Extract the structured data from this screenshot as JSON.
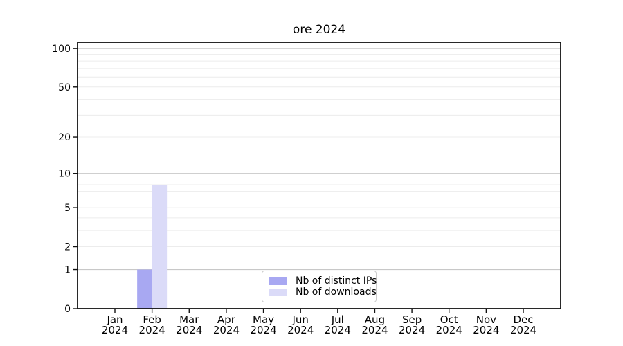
{
  "figure": {
    "background": "#ffffff"
  },
  "chart_data": {
    "type": "bar",
    "title": "ore 2024",
    "categories": [
      "Jan 2024",
      "Feb 2024",
      "Mar 2024",
      "Apr 2024",
      "May 2024",
      "Jun 2024",
      "Jul 2024",
      "Aug 2024",
      "Sep 2024",
      "Oct 2024",
      "Nov 2024",
      "Dec 2024"
    ],
    "series": [
      {
        "name": "Nb of distinct IPs",
        "color": "#a8a8f2",
        "values": [
          0,
          1,
          0,
          0,
          0,
          0,
          0,
          0,
          0,
          0,
          0,
          0
        ]
      },
      {
        "name": "Nb of downloads",
        "color": "#dbdbf8",
        "values": [
          0,
          8,
          0,
          0,
          0,
          0,
          0,
          0,
          0,
          0,
          0,
          0
        ]
      }
    ],
    "xlabel": "",
    "ylabel": "",
    "yscale": "log1p",
    "ylim": [
      0,
      112
    ],
    "yticks": [
      0,
      1,
      2,
      5,
      10,
      20,
      50,
      100
    ],
    "grid_major": [
      1,
      10,
      100
    ],
    "grid_minor": [
      2,
      3,
      4,
      5,
      6,
      7,
      8,
      9,
      20,
      30,
      40,
      50,
      60,
      70,
      80,
      90
    ],
    "legend_position": "lower-center",
    "colors": {
      "grid_major": "#c8c8c8",
      "grid_minor": "#ececec",
      "axis_frame": "#111111",
      "tick": "#111111",
      "text": "#000000"
    }
  }
}
